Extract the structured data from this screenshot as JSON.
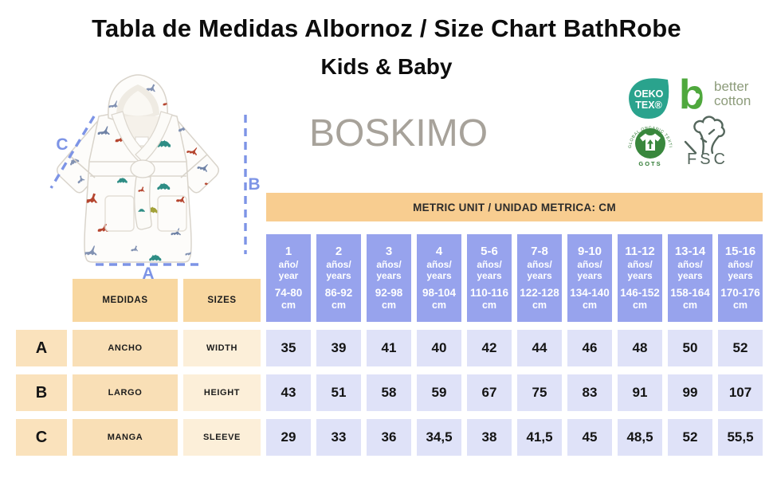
{
  "page": {
    "title": "Tabla de Medidas Albornoz / Size Chart BathRobe",
    "subtitle": "Kids & Baby",
    "brand": "BOSKIMO"
  },
  "measurement_diagram": {
    "label_a": "A",
    "label_b": "B",
    "label_c": "C"
  },
  "certifications": {
    "oeko_tex": {
      "line1": "OEKO",
      "line2": "TEX®"
    },
    "better_cotton": {
      "initial": "b",
      "line1": "better",
      "line2": "cotton"
    },
    "gots": {
      "ring_text": "GLOBAL ORGANIC TEXTILE STANDARD",
      "label": "GOTS"
    },
    "fsc": {
      "label": "FSC"
    }
  },
  "table": {
    "unit_banner": "METRIC UNIT / UNIDAD METRICA: CM",
    "medidas_header": "MEDIDAS",
    "sizes_header": "SIZES",
    "columns": [
      {
        "age": "1",
        "es": "año/",
        "en": "year",
        "range": "74-80",
        "unit": "cm"
      },
      {
        "age": "2",
        "es": "años/",
        "en": "years",
        "range": "86-92",
        "unit": "cm"
      },
      {
        "age": "3",
        "es": "años/",
        "en": "years",
        "range": "92-98",
        "unit": "cm"
      },
      {
        "age": "4",
        "es": "años/",
        "en": "years",
        "range": "98-104",
        "unit": "cm"
      },
      {
        "age": "5-6",
        "es": "años/",
        "en": "years",
        "range": "110-116",
        "unit": "cm"
      },
      {
        "age": "7-8",
        "es": "años/",
        "en": "years",
        "range": "122-128",
        "unit": "cm"
      },
      {
        "age": "9-10",
        "es": "años/",
        "en": "years",
        "range": "134-140",
        "unit": "cm"
      },
      {
        "age": "11-12",
        "es": "años/",
        "en": "years",
        "range": "146-152",
        "unit": "cm"
      },
      {
        "age": "13-14",
        "es": "años/",
        "en": "years",
        "range": "158-164",
        "unit": "cm"
      },
      {
        "age": "15-16",
        "es": "años/",
        "en": "years",
        "range": "170-176",
        "unit": "cm"
      }
    ],
    "rows": [
      {
        "letter": "A",
        "medida": "ANCHO",
        "size": "WIDTH",
        "values": [
          "35",
          "39",
          "41",
          "40",
          "42",
          "44",
          "46",
          "48",
          "50",
          "52"
        ]
      },
      {
        "letter": "B",
        "medida": "LARGO",
        "size": "HEIGHT",
        "values": [
          "43",
          "51",
          "58",
          "59",
          "67",
          "75",
          "83",
          "91",
          "99",
          "107"
        ]
      },
      {
        "letter": "C",
        "medida": "MANGA",
        "size": "SLEEVE",
        "values": [
          "29",
          "33",
          "36",
          "34,5",
          "38",
          "41,5",
          "45",
          "48,5",
          "52",
          "55,5"
        ]
      }
    ]
  },
  "chart_data": {
    "type": "table",
    "title": "Tabla de Medidas Albornoz / Size Chart BathRobe — Kids & Baby",
    "unit": "cm",
    "columns": [
      "1 año/year 74-80 cm",
      "2 años/years 86-92 cm",
      "3 años/years 92-98 cm",
      "4 años/years 98-104 cm",
      "5-6 años/years 110-116 cm",
      "7-8 años/years 122-128 cm",
      "9-10 años/years 134-140 cm",
      "11-12 años/years 146-152 cm",
      "13-14 años/years 158-164 cm",
      "15-16 años/years 170-176 cm"
    ],
    "rows": [
      {
        "label": "A — ANCHO / WIDTH",
        "values": [
          35,
          39,
          41,
          40,
          42,
          44,
          46,
          48,
          50,
          52
        ]
      },
      {
        "label": "B — LARGO / HEIGHT",
        "values": [
          43,
          51,
          58,
          59,
          67,
          75,
          83,
          91,
          99,
          107
        ]
      },
      {
        "label": "C — MANGA / SLEEVE",
        "values": [
          29,
          33,
          36,
          34.5,
          38,
          41.5,
          45,
          48.5,
          52,
          55.5
        ]
      }
    ]
  },
  "colors": {
    "banner_bg": "#F8CD90",
    "header_peach": "#F8D7A0",
    "letter_peach": "#FAE2BC",
    "medida_peach": "#F9DFB6",
    "size_peach": "#FCEFD9",
    "column_purple": "#97A3ED",
    "value_lavender": "#DFE2F8",
    "measure_blue": "#7D94E6",
    "brand_gray": "#A7A29A",
    "oeko_teal": "#2AA38D",
    "cotton_green": "#4FA83D",
    "gots_green": "#39873D",
    "fsc_gray_green": "#54665C"
  }
}
